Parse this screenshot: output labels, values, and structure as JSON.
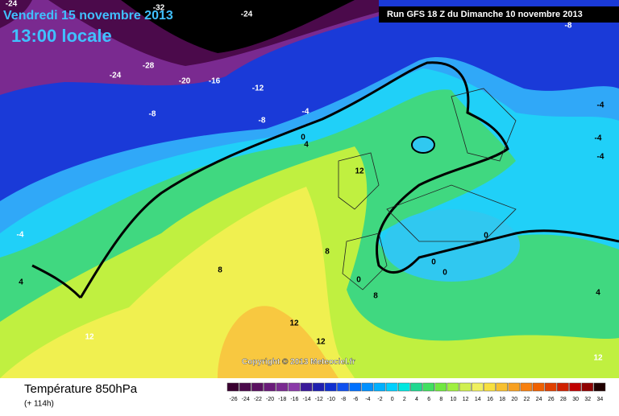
{
  "header": {
    "date": "Vendredi 15 novembre 2013",
    "time": "13:00 locale",
    "run": "Run GFS 18 Z du Dimanche 10 novembre 2013"
  },
  "map": {
    "copyright": "Copyright © 2013 Meteociel.fr",
    "contour_labels": [
      -24,
      -32,
      -24,
      -28,
      -24,
      -20,
      -16,
      -12,
      -8,
      -8,
      -4,
      0,
      4,
      12,
      -4,
      4,
      8,
      8,
      0,
      8,
      12,
      12,
      12,
      0,
      0,
      0,
      -4,
      -4,
      -4,
      4,
      12,
      -8
    ]
  },
  "footer": {
    "title": "Température 850hPa",
    "lead": "(+ 114h)"
  },
  "legend": {
    "values": [
      -26,
      -24,
      -22,
      -20,
      -18,
      -16,
      -14,
      -12,
      -10,
      -8,
      -6,
      -4,
      -2,
      0,
      2,
      4,
      6,
      8,
      10,
      12,
      14,
      16,
      18,
      20,
      22,
      24,
      26,
      28,
      30,
      32,
      34
    ],
    "colors": [
      "#3a0030",
      "#4b0a4b",
      "#5a1060",
      "#6a1a7a",
      "#7a2a90",
      "#8a3aa8",
      "#3a1a9a",
      "#2020b0",
      "#1030d0",
      "#1050f0",
      "#0070ff",
      "#0090ff",
      "#00b0ff",
      "#00d0ff",
      "#00e8e0",
      "#20d890",
      "#40e060",
      "#70e840",
      "#a0f040",
      "#d0f050",
      "#f0f060",
      "#f8e040",
      "#f8c030",
      "#f8a020",
      "#f88010",
      "#f06000",
      "#e04000",
      "#d02000",
      "#c00000",
      "#900000",
      "#200000"
    ]
  }
}
